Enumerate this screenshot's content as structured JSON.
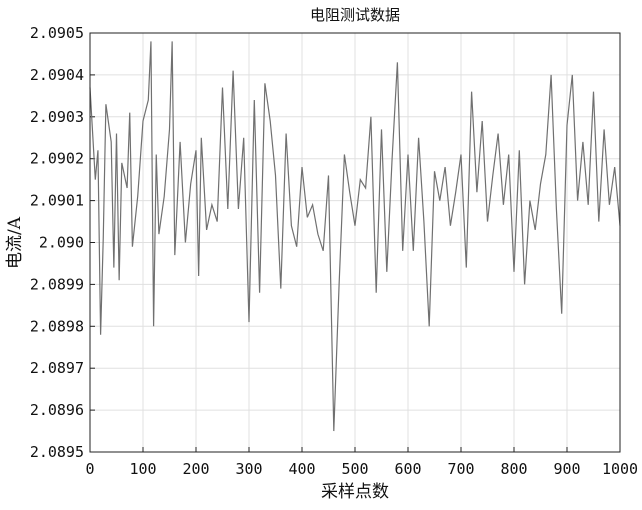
{
  "chart_data": {
    "type": "line",
    "title": "电阻测试数据",
    "xlabel": "采样点数",
    "ylabel": "电流/A",
    "x": [
      0,
      10,
      15,
      20,
      25,
      30,
      40,
      45,
      50,
      55,
      60,
      70,
      75,
      80,
      90,
      100,
      110,
      115,
      120,
      125,
      130,
      140,
      150,
      155,
      160,
      170,
      180,
      190,
      200,
      205,
      210,
      220,
      230,
      240,
      250,
      260,
      270,
      280,
      290,
      300,
      310,
      320,
      330,
      340,
      350,
      360,
      370,
      380,
      390,
      400,
      410,
      420,
      430,
      440,
      450,
      460,
      470,
      480,
      490,
      500,
      510,
      520,
      530,
      540,
      550,
      560,
      570,
      580,
      590,
      600,
      610,
      620,
      630,
      640,
      650,
      660,
      670,
      680,
      690,
      700,
      710,
      720,
      730,
      740,
      750,
      760,
      770,
      780,
      790,
      800,
      810,
      820,
      830,
      840,
      850,
      860,
      870,
      880,
      890,
      900,
      910,
      920,
      930,
      940,
      950,
      960,
      970,
      980,
      990,
      1000
    ],
    "series": [
      {
        "name": "电流",
        "color": "#707070",
        "values": [
          2.09037,
          2.09015,
          2.09022,
          2.08978,
          2.09001,
          2.09033,
          2.09024,
          2.08994,
          2.09026,
          2.08991,
          2.09019,
          2.09013,
          2.09031,
          2.08999,
          2.09011,
          2.09029,
          2.09034,
          2.09048,
          2.0898,
          2.09021,
          2.09002,
          2.09011,
          2.09027,
          2.09048,
          2.08997,
          2.09024,
          2.09,
          2.09014,
          2.09022,
          2.08992,
          2.09025,
          2.09003,
          2.09009,
          2.09005,
          2.09037,
          2.09008,
          2.09041,
          2.09008,
          2.09025,
          2.08981,
          2.09034,
          2.08988,
          2.09038,
          2.09029,
          2.09016,
          2.08989,
          2.09026,
          2.09004,
          2.08999,
          2.09018,
          2.09006,
          2.09009,
          2.09002,
          2.08998,
          2.09016,
          2.08955,
          2.0899,
          2.09021,
          2.09012,
          2.09004,
          2.09015,
          2.09013,
          2.0903,
          2.08988,
          2.09027,
          2.08993,
          2.0902,
          2.09043,
          2.08998,
          2.09021,
          2.08998,
          2.09025,
          2.09005,
          2.0898,
          2.09017,
          2.0901,
          2.09018,
          2.09004,
          2.09012,
          2.09021,
          2.08994,
          2.09036,
          2.09012,
          2.09029,
          2.09005,
          2.09016,
          2.09026,
          2.09009,
          2.09021,
          2.08993,
          2.09022,
          2.0899,
          2.0901,
          2.09003,
          2.09014,
          2.09021,
          2.0904,
          2.09008,
          2.08983,
          2.09028,
          2.0904,
          2.0901,
          2.09024,
          2.09009,
          2.09036,
          2.09005,
          2.09027,
          2.09009,
          2.09018,
          2.09004
        ]
      }
    ],
    "xlim": [
      0,
      1000
    ],
    "xticks": [
      0,
      100,
      200,
      300,
      400,
      500,
      600,
      700,
      800,
      900,
      1000
    ],
    "ylim": [
      2.0895,
      2.0905
    ],
    "yticks": [
      2.0895,
      2.0896,
      2.0897,
      2.0898,
      2.0899,
      {
        "value": 2.09,
        "label": "2.090"
      },
      2.0901,
      2.0902,
      2.0903,
      2.0904,
      2.0905
    ],
    "grid": true
  }
}
